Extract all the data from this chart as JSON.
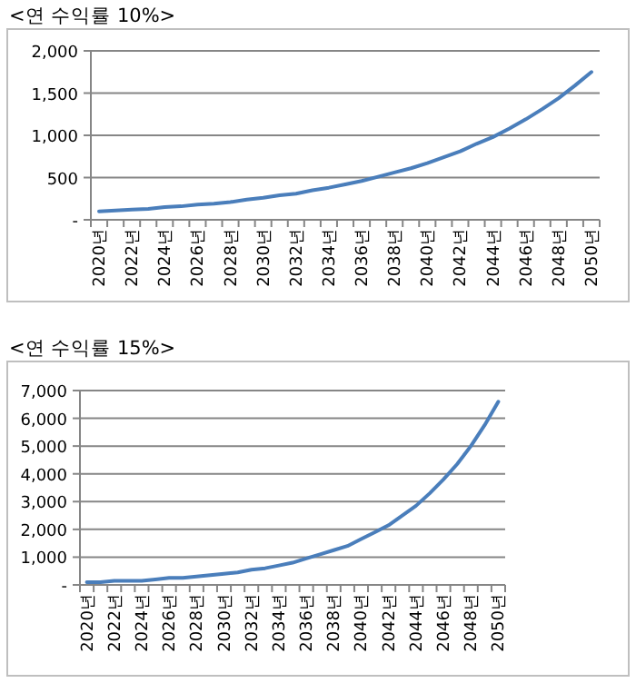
{
  "chart_data": [
    {
      "type": "line",
      "title": "<연 수익률 10%>",
      "categories": [
        "2020년",
        null,
        "2022년",
        null,
        "2024년",
        null,
        "2026년",
        null,
        "2028년",
        null,
        "2030년",
        null,
        "2032년",
        null,
        "2034년",
        null,
        "2036년",
        null,
        "2038년",
        null,
        "2040년",
        null,
        "2042년",
        null,
        "2044년",
        null,
        "2046년",
        null,
        "2048년",
        null,
        "2050년"
      ],
      "series": [
        {
          "color": "#4a7ebb",
          "values": [
            100,
            110,
            120,
            130,
            150,
            160,
            180,
            190,
            210,
            240,
            260,
            290,
            310,
            350,
            380,
            420,
            460,
            510,
            560,
            610,
            670,
            740,
            810,
            900,
            980,
            1080,
            1190,
            1310,
            1440,
            1590,
            1750
          ]
        }
      ],
      "ylim": [
        0,
        2000
      ],
      "yticks": [
        {
          "value": 0,
          "label": "-"
        },
        500,
        {
          "value": 1000,
          "label": "1,000"
        },
        {
          "value": 1500,
          "label": "1,500"
        },
        {
          "value": 2000,
          "label": "2,000"
        }
      ],
      "grid": "y"
    },
    {
      "type": "line",
      "title": "<연 수익률 15%>",
      "categories": [
        "2020년",
        null,
        "2022년",
        null,
        "2024년",
        null,
        "2026년",
        null,
        "2028년",
        null,
        "2030년",
        null,
        "2032년",
        null,
        "2034년",
        null,
        "2036년",
        null,
        "2038년",
        null,
        "2040년",
        null,
        "2042년",
        null,
        "2044년",
        null,
        "2046년",
        null,
        "2048년",
        null,
        "2050년"
      ],
      "series": [
        {
          "color": "#4a7ebb",
          "values": [
            100,
            100,
            150,
            150,
            150,
            200,
            250,
            250,
            300,
            350,
            400,
            450,
            550,
            600,
            700,
            800,
            950,
            1100,
            1250,
            1400,
            1650,
            1900,
            2150,
            2500,
            2850,
            3300,
            3800,
            4350,
            5000,
            5750,
            6600
          ]
        }
      ],
      "ylim": [
        0,
        7000
      ],
      "yticks": [
        {
          "value": 0,
          "label": "-"
        },
        {
          "value": 1000,
          "label": "1,000"
        },
        {
          "value": 2000,
          "label": "2,000"
        },
        {
          "value": 3000,
          "label": "3,000"
        },
        {
          "value": 4000,
          "label": "4,000"
        },
        {
          "value": 5000,
          "label": "5,000"
        },
        {
          "value": 6000,
          "label": "6,000"
        },
        {
          "value": 7000,
          "label": "7,000"
        }
      ],
      "grid": "y"
    }
  ]
}
